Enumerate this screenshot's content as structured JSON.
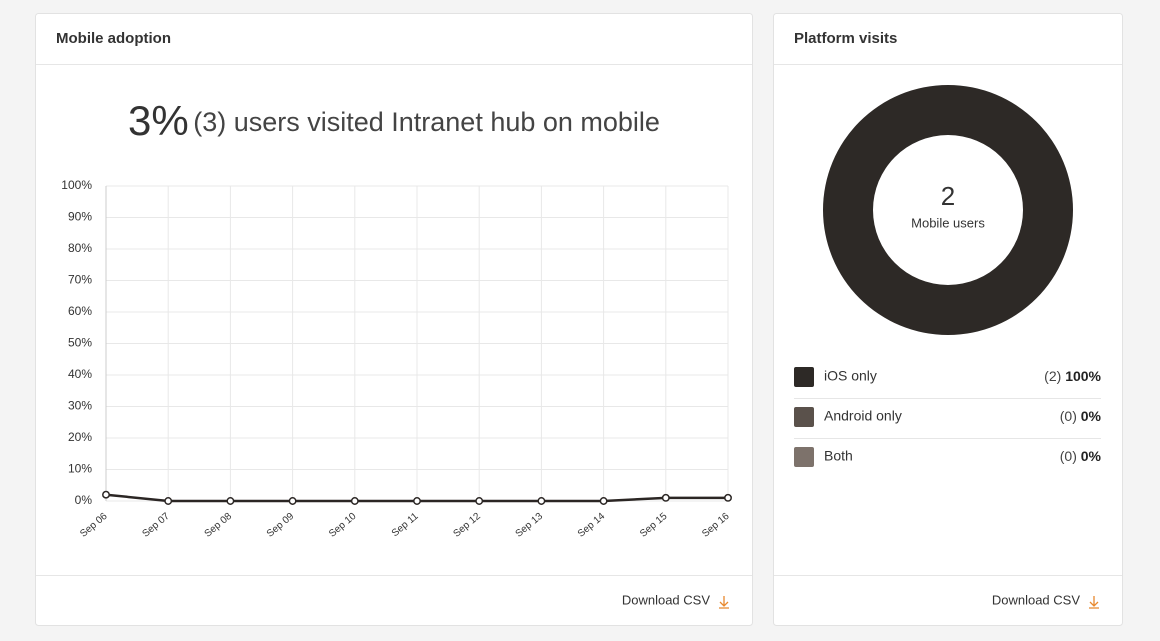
{
  "adoption": {
    "title": "Mobile adoption",
    "headline_percent": "3%",
    "headline_text": "(3) users visited Intranet hub on mobile",
    "chart": {
      "type": "line",
      "categories": [
        "Sep 06",
        "Sep 07",
        "Sep 08",
        "Sep 09",
        "Sep 10",
        "Sep 11",
        "Sep 12",
        "Sep 13",
        "Sep 14",
        "Sep 15",
        "Sep 16"
      ],
      "series": [
        {
          "color": "#2b2624",
          "values": [
            2,
            0,
            0,
            0,
            0,
            0,
            0,
            0,
            0,
            1,
            1
          ]
        }
      ],
      "ylim": [
        0,
        100
      ],
      "yticks": [
        {
          "value": 0,
          "label": "0%"
        },
        {
          "value": 10,
          "label": "10%"
        },
        {
          "value": 20,
          "label": "20%"
        },
        {
          "value": 30,
          "label": "30%"
        },
        {
          "value": 40,
          "label": "40%"
        },
        {
          "value": 50,
          "label": "50%"
        },
        {
          "value": 60,
          "label": "60%"
        },
        {
          "value": 70,
          "label": "70%"
        },
        {
          "value": 80,
          "label": "80%"
        },
        {
          "value": 90,
          "label": "90%"
        },
        {
          "value": 100,
          "label": "100%"
        }
      ],
      "grid": true
    },
    "download": "Download CSV"
  },
  "platform": {
    "title": "Platform visits",
    "chart": {
      "type": "donut",
      "center_value": 2,
      "center_label": "Mobile users",
      "slices": [
        {
          "name": "iOS only",
          "color": "#2d2926",
          "count": 2,
          "count_label": "(2)",
          "percent_label": "100%"
        },
        {
          "name": "Android only",
          "color": "#5a514b",
          "count": 0,
          "count_label": "(0)",
          "percent_label": "0%"
        },
        {
          "name": "Both",
          "color": "#7d726b",
          "count": 0,
          "count_label": "(0)",
          "percent_label": "0%"
        }
      ]
    },
    "download": "Download CSV"
  }
}
